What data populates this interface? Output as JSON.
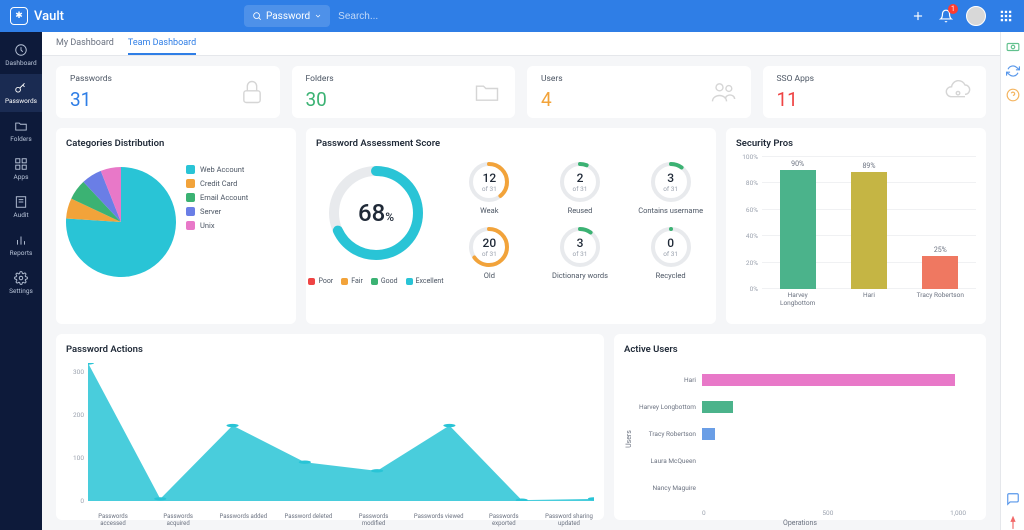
{
  "header": {
    "app_name": "Vault",
    "search_type": "Password",
    "search_placeholder": "Search...",
    "notif_count": "1"
  },
  "sidebar": {
    "items": [
      {
        "label": "Dashboard",
        "icon": "dashboard"
      },
      {
        "label": "Passwords",
        "icon": "key"
      },
      {
        "label": "Folders",
        "icon": "folder"
      },
      {
        "label": "Apps",
        "icon": "apps"
      },
      {
        "label": "Audit",
        "icon": "audit"
      },
      {
        "label": "Reports",
        "icon": "reports"
      },
      {
        "label": "Settings",
        "icon": "settings"
      }
    ],
    "active_index": 1
  },
  "tabs": {
    "items": [
      "My Dashboard",
      "Team Dashboard"
    ],
    "active": 1
  },
  "stats": [
    {
      "label": "Passwords",
      "value": "31",
      "color": "#2f7ee6",
      "icon": "lock"
    },
    {
      "label": "Folders",
      "value": "30",
      "color": "#3bb273",
      "icon": "folder-big"
    },
    {
      "label": "Users",
      "value": "4",
      "color": "#f2a33a",
      "icon": "users"
    },
    {
      "label": "SSO Apps",
      "value": "11",
      "color": "#ef4444",
      "icon": "cloud-key"
    }
  ],
  "categories": {
    "title": "Categories Distribution",
    "type": "pie",
    "items": [
      {
        "name": "Web Account",
        "color": "#29c4d6",
        "pct": 76
      },
      {
        "name": "Credit Card",
        "color": "#f2a33a",
        "pct": 6
      },
      {
        "name": "Email Account",
        "color": "#3bb273",
        "pct": 6
      },
      {
        "name": "Server",
        "color": "#6a7ee6",
        "pct": 6
      },
      {
        "name": "Unix",
        "color": "#e878c8",
        "pct": 6
      }
    ]
  },
  "assessment": {
    "title": "Password Assessment Score",
    "score": "68",
    "donut_color": "#29c4d6",
    "donut_track": "#e8eaed",
    "legend": [
      {
        "name": "Poor",
        "color": "#ef4444"
      },
      {
        "name": "Fair",
        "color": "#f2a33a"
      },
      {
        "name": "Good",
        "color": "#3bb273"
      },
      {
        "name": "Excellent",
        "color": "#29c4d6"
      }
    ],
    "rings": [
      {
        "label": "Weak",
        "num": "12",
        "total": "of 31",
        "pct": 39,
        "color": "#f2a33a"
      },
      {
        "label": "Reused",
        "num": "2",
        "total": "of 31",
        "pct": 6,
        "color": "#3bb273"
      },
      {
        "label": "Contains username",
        "num": "3",
        "total": "of 31",
        "pct": 10,
        "color": "#3bb273"
      },
      {
        "label": "Old",
        "num": "20",
        "total": "of 31",
        "pct": 65,
        "color": "#f2a33a"
      },
      {
        "label": "Dictionary words",
        "num": "3",
        "total": "of 31",
        "pct": 10,
        "color": "#3bb273"
      },
      {
        "label": "Recycled",
        "num": "0",
        "total": "of 31",
        "pct": 0,
        "color": "#3bb273"
      }
    ]
  },
  "pros": {
    "title": "Security Pros",
    "type": "bar",
    "ylim": [
      0,
      100
    ],
    "ytick_step": 20,
    "grid_color": "#f0f1f3",
    "bars": [
      {
        "name": "Harvey Longbottom",
        "value": 90,
        "color": "#4bb38b"
      },
      {
        "name": "Hari",
        "value": 89,
        "color": "#c5b544"
      },
      {
        "name": "Tracy Robertson",
        "value": 25,
        "color": "#ef7861"
      }
    ]
  },
  "actions": {
    "title": "Password Actions",
    "type": "area",
    "fill_color": "#29c4d6",
    "ylim": [
      0,
      320
    ],
    "yticks": [
      0,
      100,
      200,
      300
    ],
    "categories": [
      "Passwords accessed",
      "Passwords acquired",
      "Passwords added",
      "Password deleted",
      "Passwords modified",
      "Passwords viewed",
      "Passwords exported",
      "Password sharing updated"
    ],
    "values": [
      320,
      5,
      175,
      90,
      70,
      175,
      2,
      5
    ]
  },
  "active_users": {
    "title": "Active Users",
    "type": "hbar",
    "xlabel": "Operations",
    "ylabel": "Users",
    "xlim": [
      0,
      1200
    ],
    "xticks": [
      0,
      500,
      1000
    ],
    "bars": [
      {
        "name": "Hari",
        "value": 1150,
        "color": "#e878c8"
      },
      {
        "name": "Harvey Longbottom",
        "value": 140,
        "color": "#4bb38b"
      },
      {
        "name": "Tracy Robertson",
        "value": 60,
        "color": "#6a9ee6"
      },
      {
        "name": "Laura McQueen",
        "value": 0,
        "color": "#cccccc"
      },
      {
        "name": "Nancy Maguire",
        "value": 0,
        "color": "#cccccc"
      }
    ]
  }
}
